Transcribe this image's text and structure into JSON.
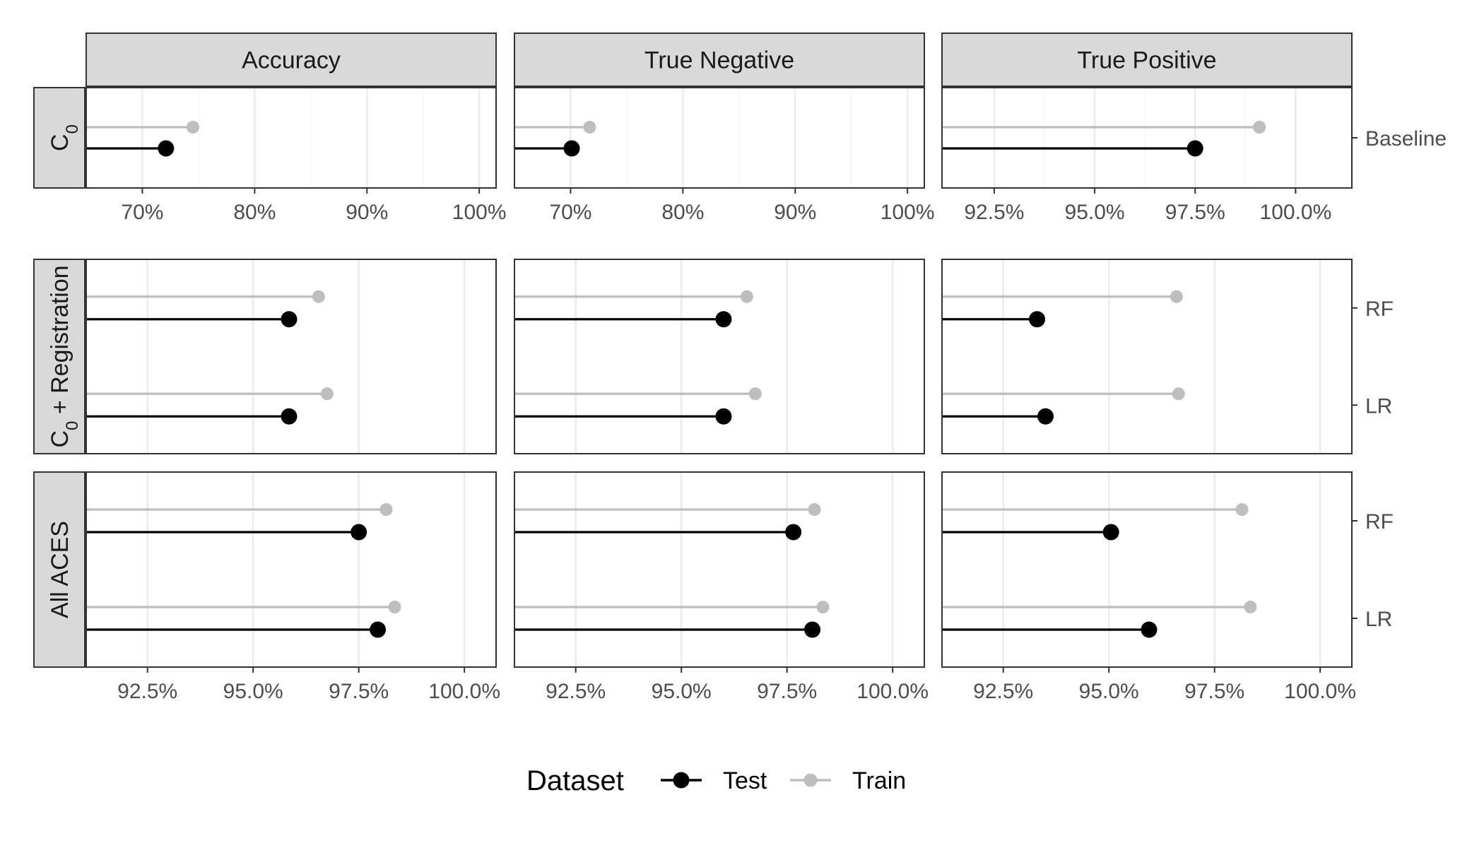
{
  "chart_data": {
    "type": "lollipop",
    "facets": {
      "columns": [
        "Accuracy",
        "True Negative",
        "True Positive"
      ],
      "rows": [
        {
          "label": "C",
          "label_subscript": "0",
          "label_suffix": "",
          "models": [
            "Baseline"
          ]
        },
        {
          "label": "C",
          "label_subscript": "0",
          "label_suffix": " +  Registration",
          "models": [
            "RF",
            "LR"
          ]
        },
        {
          "label": "All ACES",
          "label_subscript": "",
          "label_suffix": "",
          "models": [
            "RF",
            "LR"
          ]
        }
      ]
    },
    "x_scales": [
      {
        "rows": [
          0
        ],
        "columns": [
          0,
          1
        ],
        "domain": [
          65,
          101.5
        ],
        "ticks": [
          70,
          80,
          90,
          100
        ],
        "tick_labels": [
          "70%",
          "80%",
          "90%",
          "100%"
        ],
        "minor": [
          65,
          75,
          85,
          95
        ]
      },
      {
        "rows": [
          0
        ],
        "columns": [
          2
        ],
        "domain": [
          91.2,
          101.4
        ],
        "ticks": [
          92.5,
          95,
          97.5,
          100
        ],
        "tick_labels": [
          "92.5%",
          "95.0%",
          "97.5%",
          "100.0%"
        ],
        "minor": [
          93.75,
          96.25,
          98.75
        ]
      },
      {
        "rows": [
          1,
          2
        ],
        "columns": [
          0,
          1,
          2
        ],
        "domain": [
          91.05,
          100.75
        ],
        "ticks": [
          92.5,
          95,
          97.5,
          100
        ],
        "tick_labels": [
          "92.5%",
          "95.0%",
          "97.5%",
          "100.0%"
        ],
        "minor": []
      }
    ],
    "series": [
      {
        "name": "Test",
        "color": "#000000"
      },
      {
        "name": "Train",
        "color": "#bebebe"
      }
    ],
    "values": [
      [
        {
          "Baseline": {
            "Test": 72.1,
            "Train": 74.5
          }
        },
        {
          "Baseline": {
            "Test": 70.1,
            "Train": 71.7
          }
        },
        {
          "Baseline": {
            "Test": 97.5,
            "Train": 99.1
          }
        }
      ],
      [
        {
          "RF": {
            "Test": 95.85,
            "Train": 96.55
          },
          "LR": {
            "Test": 95.85,
            "Train": 96.75
          }
        },
        {
          "RF": {
            "Test": 96.0,
            "Train": 96.55
          },
          "LR": {
            "Test": 96.0,
            "Train": 96.75
          }
        },
        {
          "RF": {
            "Test": 93.3,
            "Train": 96.6
          },
          "LR": {
            "Test": 93.5,
            "Train": 96.65
          }
        }
      ],
      [
        {
          "RF": {
            "Test": 97.5,
            "Train": 98.15
          },
          "LR": {
            "Test": 97.95,
            "Train": 98.35
          }
        },
        {
          "RF": {
            "Test": 97.65,
            "Train": 98.15
          },
          "LR": {
            "Test": 98.1,
            "Train": 98.35
          }
        },
        {
          "RF": {
            "Test": 95.05,
            "Train": 98.15
          },
          "LR": {
            "Test": 95.95,
            "Train": 98.35
          }
        }
      ]
    ],
    "legend": {
      "title": "Dataset",
      "position": "bottom"
    }
  }
}
